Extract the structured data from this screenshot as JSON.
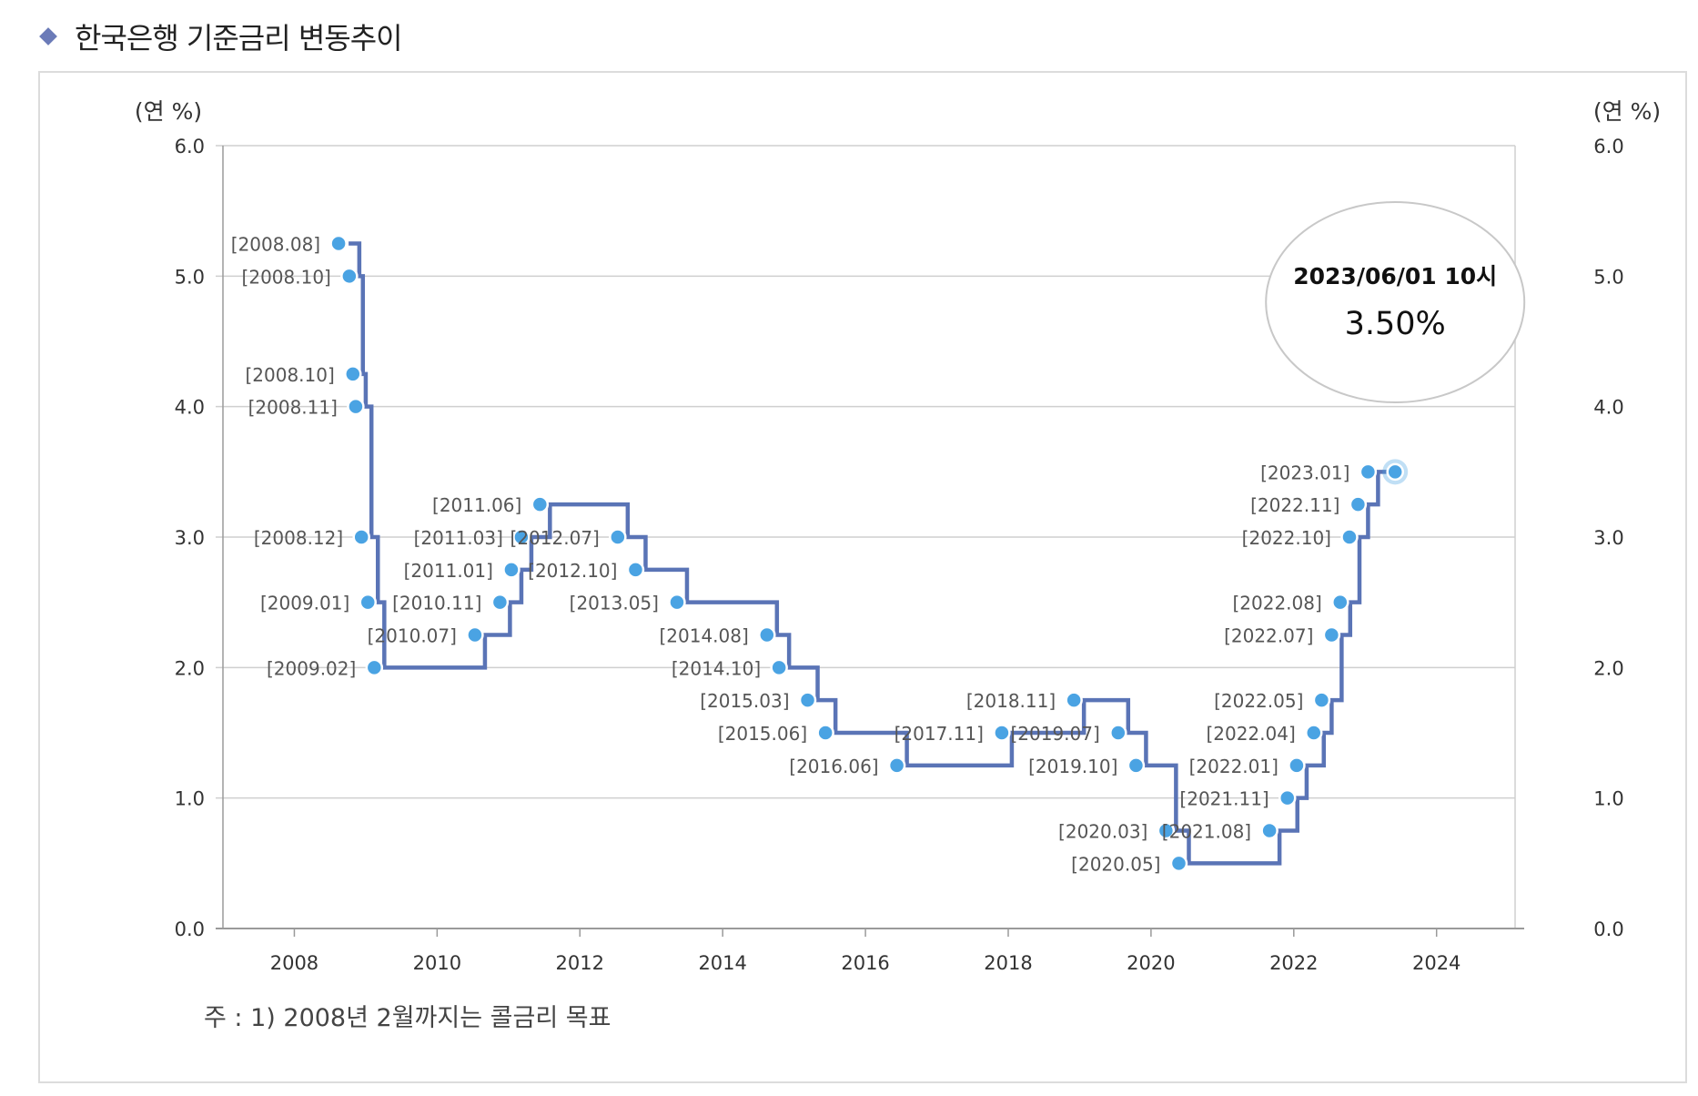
{
  "page": {
    "title": "한국은행 기준금리 변동추이",
    "note": "주 : 1) 2008년 2월까지는 콜금리 목표"
  },
  "colors": {
    "line": "#5a74b6",
    "point": "#4aa3e3",
    "grid": "#cfcfcf",
    "axis": "#9a9a9a",
    "label": "#555555",
    "bubble_border": "#c8c8c8",
    "title_marker": "#6b7bb8"
  },
  "chart_data": {
    "type": "line",
    "step": true,
    "title": "한국은행 기준금리 변동추이",
    "ylabel_left": "(연 %)",
    "ylabel_right": "(연 %)",
    "ylim": [
      0,
      6
    ],
    "y_ticks": [
      "0.0",
      "1.0",
      "2.0",
      "3.0",
      "4.0",
      "5.0",
      "6.0"
    ],
    "xlim": [
      2007,
      2025.1
    ],
    "x_ticks": [
      "2008",
      "2010",
      "2012",
      "2014",
      "2016",
      "2018",
      "2020",
      "2022",
      "2024"
    ],
    "grid": true,
    "points": [
      {
        "label": "[2008.08]",
        "x": 2008.62,
        "y": 5.25
      },
      {
        "label": "[2008.10]",
        "x": 2008.77,
        "y": 5.0
      },
      {
        "label": "[2008.10]",
        "x": 2008.82,
        "y": 4.25
      },
      {
        "label": "[2008.11]",
        "x": 2008.86,
        "y": 4.0
      },
      {
        "label": "[2008.12]",
        "x": 2008.94,
        "y": 3.0
      },
      {
        "label": "[2009.01]",
        "x": 2009.03,
        "y": 2.5
      },
      {
        "label": "[2009.02]",
        "x": 2009.12,
        "y": 2.0
      },
      {
        "label": "[2010.07]",
        "x": 2010.53,
        "y": 2.25
      },
      {
        "label": "[2010.11]",
        "x": 2010.88,
        "y": 2.5
      },
      {
        "label": "[2011.01]",
        "x": 2011.04,
        "y": 2.75
      },
      {
        "label": "[2011.03]",
        "x": 2011.18,
        "y": 3.0
      },
      {
        "label": "[2011.06]",
        "x": 2011.44,
        "y": 3.25
      },
      {
        "label": "[2012.07]",
        "x": 2012.53,
        "y": 3.0
      },
      {
        "label": "[2012.10]",
        "x": 2012.78,
        "y": 2.75
      },
      {
        "label": "[2013.05]",
        "x": 2013.36,
        "y": 2.5
      },
      {
        "label": "[2014.08]",
        "x": 2014.62,
        "y": 2.25
      },
      {
        "label": "[2014.10]",
        "x": 2014.79,
        "y": 2.0
      },
      {
        "label": "[2015.03]",
        "x": 2015.19,
        "y": 1.75
      },
      {
        "label": "[2015.06]",
        "x": 2015.44,
        "y": 1.5
      },
      {
        "label": "[2016.06]",
        "x": 2016.44,
        "y": 1.25
      },
      {
        "label": "[2017.11]",
        "x": 2017.91,
        "y": 1.5
      },
      {
        "label": "[2018.11]",
        "x": 2018.92,
        "y": 1.75
      },
      {
        "label": "[2019.07]",
        "x": 2019.54,
        "y": 1.5
      },
      {
        "label": "[2019.10]",
        "x": 2019.79,
        "y": 1.25
      },
      {
        "label": "[2020.03]",
        "x": 2020.21,
        "y": 0.75
      },
      {
        "label": "[2020.05]",
        "x": 2020.39,
        "y": 0.5
      },
      {
        "label": "[2021.08]",
        "x": 2021.66,
        "y": 0.75
      },
      {
        "label": "[2021.11]",
        "x": 2021.91,
        "y": 1.0
      },
      {
        "label": "[2022.01]",
        "x": 2022.04,
        "y": 1.25
      },
      {
        "label": "[2022.04]",
        "x": 2022.28,
        "y": 1.5
      },
      {
        "label": "[2022.05]",
        "x": 2022.39,
        "y": 1.75
      },
      {
        "label": "[2022.07]",
        "x": 2022.53,
        "y": 2.25
      },
      {
        "label": "[2022.08]",
        "x": 2022.65,
        "y": 2.5
      },
      {
        "label": "[2022.10]",
        "x": 2022.78,
        "y": 3.0
      },
      {
        "label": "[2022.11]",
        "x": 2022.9,
        "y": 3.25
      },
      {
        "label": "[2023.01]",
        "x": 2023.04,
        "y": 3.5
      }
    ],
    "current_point": {
      "x": 2023.42,
      "y": 3.5
    },
    "tooltip": {
      "date": "2023/06/01 10시",
      "value": "3.50%"
    }
  }
}
